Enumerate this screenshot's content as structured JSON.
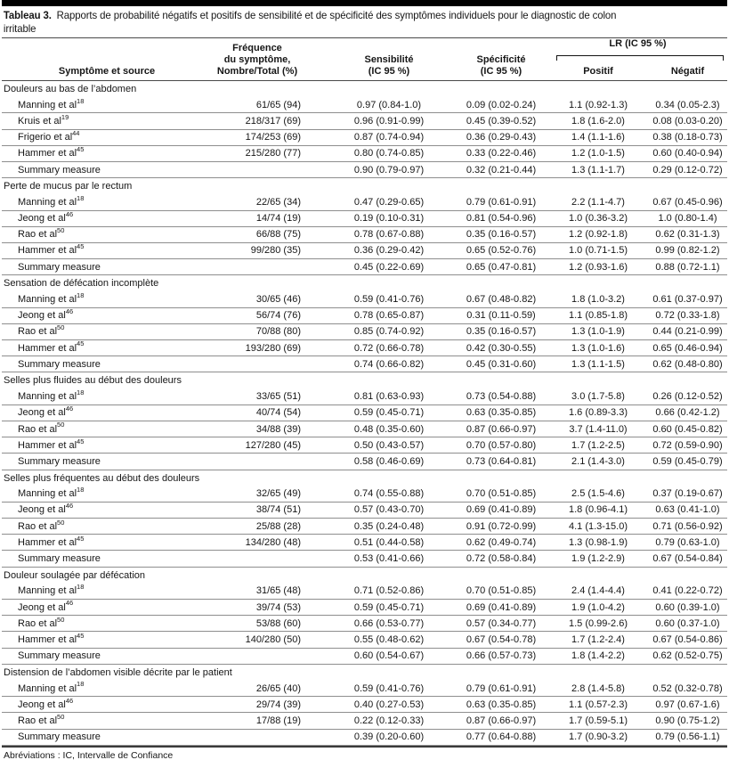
{
  "table": {
    "title": {
      "label": "Tableau 3.",
      "line1": "Rapports de probabilité négatifs et positifs de sensibilité et de spécificité des symptômes individuels pour le diagnostic de colon",
      "line2": "irritable"
    },
    "header": {
      "symptom_source": "Symptôme et source",
      "frequency": "Fréquence\ndu symptôme,\nNombre/Total (%)",
      "sensitivity": "Sensibilité\n(IC 95 %)",
      "specificity": "Spécificité\n(IC 95 %)",
      "lr_group": "LR (IC 95 %)",
      "lr_positive": "Positif",
      "lr_negative": "Négatif"
    },
    "sections": [
      {
        "symptom": "Douleurs au bas de l’abdomen",
        "rows": [
          {
            "source": "Manning et al",
            "ref": "18",
            "freq": "61/65 (94)",
            "sens": "0.97 (0.84-1.0)",
            "spec": "0.09 (0.02-0.24)",
            "lr_pos": "1.1 (0.92-1.3)",
            "lr_neg": "0.34 (0.05-2.3)"
          },
          {
            "source": "Kruis et al",
            "ref": "19",
            "freq": "218/317 (69)",
            "sens": "0.96 (0.91-0.99)",
            "spec": "0.45 (0.39-0.52)",
            "lr_pos": "1.8 (1.6-2.0)",
            "lr_neg": "0.08 (0.03-0.20)"
          },
          {
            "source": "Frigerio et al",
            "ref": "44",
            "freq": "174/253 (69)",
            "sens": "0.87 (0.74-0.94)",
            "spec": "0.36 (0.29-0.43)",
            "lr_pos": "1.4 (1.1-1.6)",
            "lr_neg": "0.38 (0.18-0.73)"
          },
          {
            "source": "Hammer et al",
            "ref": "45",
            "freq": "215/280 (77)",
            "sens": "0.80 (0.74-0.85)",
            "spec": "0.33 (0.22-0.46)",
            "lr_pos": "1.2 (1.0-1.5)",
            "lr_neg": "0.60 (0.40-0.94)"
          },
          {
            "source": "Summary measure",
            "ref": "",
            "freq": "",
            "sens": "0.90 (0.79-0.97)",
            "spec": "0.32 (0.21-0.44)",
            "lr_pos": "1.3 (1.1-1.7)",
            "lr_neg": "0.29 (0.12-0.72)"
          }
        ]
      },
      {
        "symptom": "Perte de mucus par le rectum",
        "rows": [
          {
            "source": "Manning et al",
            "ref": "18",
            "freq": "22/65 (34)",
            "sens": "0.47 (0.29-0.65)",
            "spec": "0.79 (0.61-0.91)",
            "lr_pos": "2.2 (1.1-4.7)",
            "lr_neg": "0.67 (0.45-0.96)"
          },
          {
            "source": "Jeong et al",
            "ref": "46",
            "freq": "14/74 (19)",
            "sens": "0.19 (0.10-0.31)",
            "spec": "0.81 (0.54-0.96)",
            "lr_pos": "1.0 (0.36-3.2)",
            "lr_neg": "1.0 (0.80-1.4)"
          },
          {
            "source": "Rao et al",
            "ref": "50",
            "freq": "66/88 (75)",
            "sens": "0.78 (0.67-0.88)",
            "spec": "0.35 (0.16-0.57)",
            "lr_pos": "1.2 (0.92-1.8)",
            "lr_neg": "0.62 (0.31-1.3)"
          },
          {
            "source": "Hammer et al",
            "ref": "45",
            "freq": "99/280 (35)",
            "sens": "0.36 (0.29-0.42)",
            "spec": "0.65 (0.52-0.76)",
            "lr_pos": "1.0 (0.71-1.5)",
            "lr_neg": "0.99 (0.82-1.2)"
          },
          {
            "source": "Summary measure",
            "ref": "",
            "freq": "",
            "sens": "0.45 (0.22-0.69)",
            "spec": "0.65 (0.47-0.81)",
            "lr_pos": "1.2 (0.93-1.6)",
            "lr_neg": "0.88 (0.72-1.1)"
          }
        ]
      },
      {
        "symptom": "Sensation de défécation incomplète",
        "rows": [
          {
            "source": "Manning et al",
            "ref": "18",
            "freq": "30/65 (46)",
            "sens": "0.59 (0.41-0.76)",
            "spec": "0.67 (0.48-0.82)",
            "lr_pos": "1.8 (1.0-3.2)",
            "lr_neg": "0.61 (0.37-0.97)"
          },
          {
            "source": "Jeong et al",
            "ref": "46",
            "freq": "56/74 (76)",
            "sens": "0.78 (0.65-0.87)",
            "spec": "0.31 (0.11-0.59)",
            "lr_pos": "1.1 (0.85-1.8)",
            "lr_neg": "0.72 (0.33-1.8)"
          },
          {
            "source": "Rao et al",
            "ref": "50",
            "freq": "70/88 (80)",
            "sens": "0.85 (0.74-0.92)",
            "spec": "0.35 (0.16-0.57)",
            "lr_pos": "1.3 (1.0-1.9)",
            "lr_neg": "0.44 (0.21-0.99)"
          },
          {
            "source": "Hammer et al",
            "ref": "45",
            "freq": "193/280 (69)",
            "sens": "0.72 (0.66-0.78)",
            "spec": "0.42 (0.30-0.55)",
            "lr_pos": "1.3 (1.0-1.6)",
            "lr_neg": "0.65 (0.46-0.94)"
          },
          {
            "source": "Summary measure",
            "ref": "",
            "freq": "",
            "sens": "0.74 (0.66-0.82)",
            "spec": "0.45 (0.31-0.60)",
            "lr_pos": "1.3 (1.1-1.5)",
            "lr_neg": "0.62 (0.48-0.80)"
          }
        ]
      },
      {
        "symptom": "Selles plus fluides au début des douleurs",
        "rows": [
          {
            "source": "Manning et al",
            "ref": "18",
            "freq": "33/65 (51)",
            "sens": "0.81 (0.63-0.93)",
            "spec": "0.73 (0.54-0.88)",
            "lr_pos": "3.0 (1.7-5.8)",
            "lr_neg": "0.26 (0.12-0.52)"
          },
          {
            "source": "Jeong et al",
            "ref": "46",
            "freq": "40/74 (54)",
            "sens": "0.59 (0.45-0.71)",
            "spec": "0.63 (0.35-0.85)",
            "lr_pos": "1.6 (0.89-3.3)",
            "lr_neg": "0.66 (0.42-1.2)"
          },
          {
            "source": "Rao et al",
            "ref": "50",
            "freq": "34/88 (39)",
            "sens": "0.48 (0.35-0.60)",
            "spec": "0.87 (0.66-0.97)",
            "lr_pos": "3.7 (1.4-11.0)",
            "lr_neg": "0.60 (0.45-0.82)"
          },
          {
            "source": "Hammer et al",
            "ref": "45",
            "freq": "127/280 (45)",
            "sens": "0.50 (0.43-0.57)",
            "spec": "0.70 (0.57-0.80)",
            "lr_pos": "1.7 (1.2-2.5)",
            "lr_neg": "0.72 (0.59-0.90)"
          },
          {
            "source": "Summary measure",
            "ref": "",
            "freq": "",
            "sens": "0.58 (0.46-0.69)",
            "spec": "0.73 (0.64-0.81)",
            "lr_pos": "2.1 (1.4-3.0)",
            "lr_neg": "0.59 (0.45-0.79)"
          }
        ]
      },
      {
        "symptom": "Selles plus fréquentes au début des douleurs",
        "rows": [
          {
            "source": "Manning et al",
            "ref": "18",
            "freq": "32/65 (49)",
            "sens": "0.74 (0.55-0.88)",
            "spec": "0.70 (0.51-0.85)",
            "lr_pos": "2.5 (1.5-4.6)",
            "lr_neg": "0.37 (0.19-0.67)"
          },
          {
            "source": "Jeong et al",
            "ref": "46",
            "freq": "38/74 (51)",
            "sens": "0.57 (0.43-0.70)",
            "spec": "0.69 (0.41-0.89)",
            "lr_pos": "1.8 (0.96-4.1)",
            "lr_neg": "0.63 (0.41-1.0)"
          },
          {
            "source": "Rao et al",
            "ref": "50",
            "freq": "25/88 (28)",
            "sens": "0.35 (0.24-0.48)",
            "spec": "0.91 (0.72-0.99)",
            "lr_pos": "4.1 (1.3-15.0)",
            "lr_neg": "0.71 (0.56-0.92)"
          },
          {
            "source": "Hammer et al",
            "ref": "45",
            "freq": "134/280 (48)",
            "sens": "0.51 (0.44-0.58)",
            "spec": "0.62 (0.49-0.74)",
            "lr_pos": "1.3 (0.98-1.9)",
            "lr_neg": "0.79 (0.63-1.0)"
          },
          {
            "source": "Summary measure",
            "ref": "",
            "freq": "",
            "sens": "0.53 (0.41-0.66)",
            "spec": "0.72 (0.58-0.84)",
            "lr_pos": "1.9 (1.2-2.9)",
            "lr_neg": "0.67 (0.54-0.84)"
          }
        ]
      },
      {
        "symptom": "Douleur soulagée par défécation",
        "rows": [
          {
            "source": "Manning et al",
            "ref": "18",
            "freq": "31/65 (48)",
            "sens": "0.71 (0.52-0.86)",
            "spec": "0.70 (0.51-0.85)",
            "lr_pos": "2.4 (1.4-4.4)",
            "lr_neg": "0.41 (0.22-0.72)"
          },
          {
            "source": "Jeong et al",
            "ref": "46",
            "freq": "39/74 (53)",
            "sens": "0.59 (0.45-0.71)",
            "spec": "0.69 (0.41-0.89)",
            "lr_pos": "1.9 (1.0-4.2)",
            "lr_neg": "0.60 (0.39-1.0)"
          },
          {
            "source": "Rao et al",
            "ref": "50",
            "freq": "53/88 (60)",
            "sens": "0.66 (0.53-0.77)",
            "spec": "0.57 (0.34-0.77)",
            "lr_pos": "1.5 (0.99-2.6)",
            "lr_neg": "0.60 (0.37-1.0)"
          },
          {
            "source": "Hammer et al",
            "ref": "45",
            "freq": "140/280 (50)",
            "sens": "0.55 (0.48-0.62)",
            "spec": "0.67 (0.54-0.78)",
            "lr_pos": "1.7 (1.2-2.4)",
            "lr_neg": "0.67 (0.54-0.86)"
          },
          {
            "source": "Summary measure",
            "ref": "",
            "freq": "",
            "sens": "0.60 (0.54-0.67)",
            "spec": "0.66 (0.57-0.73)",
            "lr_pos": "1.8 (1.4-2.2)",
            "lr_neg": "0.62 (0.52-0.75)"
          }
        ]
      },
      {
        "symptom": "Distension de l’abdomen visible décrite par le patient",
        "rows": [
          {
            "source": "Manning et al",
            "ref": "18",
            "freq": "26/65 (40)",
            "sens": "0.59 (0.41-0.76)",
            "spec": "0.79 (0.61-0.91)",
            "lr_pos": "2.8 (1.4-5.8)",
            "lr_neg": "0.52 (0.32-0.78)"
          },
          {
            "source": "Jeong et al",
            "ref": "46",
            "freq": "29/74 (39)",
            "sens": "0.40 (0.27-0.53)",
            "spec": "0.63 (0.35-0.85)",
            "lr_pos": "1.1 (0.57-2.3)",
            "lr_neg": "0.97 (0.67-1.6)"
          },
          {
            "source": "Rao et al",
            "ref": "50",
            "freq": "17/88 (19)",
            "sens": "0.22 (0.12-0.33)",
            "spec": "0.87 (0.66-0.97)",
            "lr_pos": "1.7 (0.59-5.1)",
            "lr_neg": "0.90 (0.75-1.2)"
          },
          {
            "source": "Summary measure",
            "ref": "",
            "freq": "",
            "sens": "0.39 (0.20-0.60)",
            "spec": "0.77 (0.64-0.88)",
            "lr_pos": "1.7 (0.90-3.2)",
            "lr_neg": "0.79 (0.56-1.1)"
          }
        ]
      }
    ],
    "footnote": "Abréviations : IC, Intervalle de Confiance"
  }
}
